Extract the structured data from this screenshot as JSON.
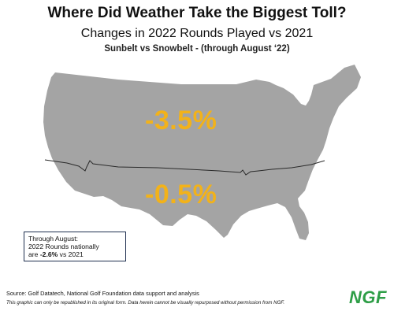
{
  "header": {
    "title": "Where Did Weather Take the Biggest Toll?",
    "subtitle": "Changes in 2022 Rounds Played vs 2021",
    "subsubtitle": "Sunbelt vs Snowbelt - (through August ‘22)"
  },
  "regions": {
    "snowbelt": {
      "value": "-3.5%"
    },
    "sunbelt": {
      "value": "-0.5%"
    }
  },
  "note": {
    "line1": "Through August:",
    "line2": "2022 Rounds nationally",
    "line3_pre": "are ",
    "line3_bold": "-2.6%",
    "line3_post": " vs 2021"
  },
  "footer": {
    "source": "Source: Golf Datatech, National Golf Foundation data support and analysis",
    "disclaimer": "This graphic can only be republished in its original form. Data herein cannot be visually repurposed without permission from NGF.",
    "logo_text": "NGF"
  },
  "colors": {
    "map_fill": "#a4a4a4",
    "divider": "#2a2a2a",
    "value_color": "#f2b21a",
    "logo_color": "#2e9e47"
  }
}
